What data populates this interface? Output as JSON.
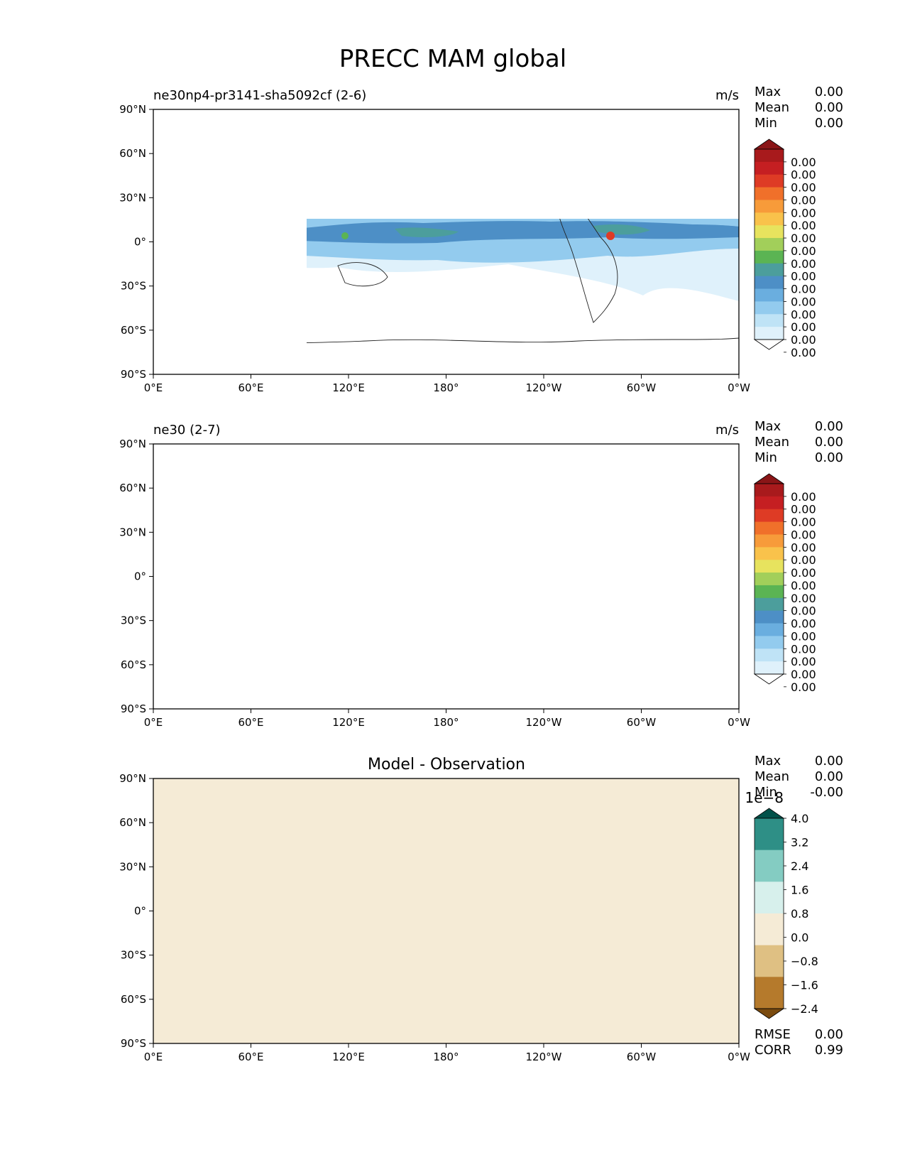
{
  "figure": {
    "title": "PRECC MAM global"
  },
  "chart_data": [
    {
      "type": "heatmap",
      "panel": "test",
      "title_left": "ne30np4-pr3141-sha5092cf (2-6)",
      "units": "m/s",
      "stats": {
        "max_label": "Max",
        "max": "0.00",
        "mean_label": "Mean",
        "mean": "0.00",
        "min_label": "Min",
        "min": "0.00"
      },
      "colorbar": {
        "colors": [
          "#ffffff",
          "#dff1fb",
          "#bfe3f6",
          "#93cbee",
          "#6aaedf",
          "#4d8fc6",
          "#4c9e9c",
          "#5bb453",
          "#a2cf5a",
          "#e7e35e",
          "#f9c24b",
          "#f79b3a",
          "#f0702a",
          "#de3b25",
          "#c51f22",
          "#a81a1c",
          "#8a1517"
        ],
        "labels": [
          "0.00",
          "0.00",
          "0.00",
          "0.00",
          "0.00",
          "0.00",
          "0.00",
          "0.00",
          "0.00",
          "0.00",
          "0.00",
          "0.00",
          "0.00",
          "0.00",
          "0.00",
          "0.00"
        ]
      },
      "xaxis": {
        "ticks": [
          "0°E",
          "60°E",
          "120°E",
          "180°",
          "120°W",
          "60°W",
          "0°W"
        ],
        "range": [
          0,
          360
        ]
      },
      "yaxis": {
        "ticks": [
          "90°N",
          "60°N",
          "30°N",
          "0°",
          "30°S",
          "60°S",
          "90°S"
        ],
        "range": [
          90,
          -90
        ]
      }
    },
    {
      "type": "heatmap",
      "panel": "reference",
      "title_left": "ne30 (2-7)",
      "units": "m/s",
      "stats": {
        "max_label": "Max",
        "max": "0.00",
        "mean_label": "Mean",
        "mean": "0.00",
        "min_label": "Min",
        "min": "0.00"
      },
      "colorbar": {
        "colors": [
          "#ffffff",
          "#dff1fb",
          "#bfe3f6",
          "#93cbee",
          "#6aaedf",
          "#4d8fc6",
          "#4c9e9c",
          "#5bb453",
          "#a2cf5a",
          "#e7e35e",
          "#f9c24b",
          "#f79b3a",
          "#f0702a",
          "#de3b25",
          "#c51f22",
          "#a81a1c",
          "#8a1517"
        ],
        "labels": [
          "0.00",
          "0.00",
          "0.00",
          "0.00",
          "0.00",
          "0.00",
          "0.00",
          "0.00",
          "0.00",
          "0.00",
          "0.00",
          "0.00",
          "0.00",
          "0.00",
          "0.00",
          "0.00"
        ]
      },
      "xaxis": {
        "ticks": [
          "0°E",
          "60°E",
          "120°E",
          "180°",
          "120°W",
          "60°W",
          "0°W"
        ],
        "range": [
          0,
          360
        ]
      },
      "yaxis": {
        "ticks": [
          "90°N",
          "60°N",
          "30°N",
          "0°",
          "30°S",
          "60°S",
          "90°S"
        ],
        "range": [
          90,
          -90
        ]
      }
    },
    {
      "type": "heatmap",
      "panel": "difference",
      "title_center": "Model - Observation",
      "stats": {
        "max_label": "Max",
        "max": "0.00",
        "mean_label": "Mean",
        "mean": "0.00",
        "min_label": "Min",
        "min": "-0.00"
      },
      "colorbar": {
        "scale": "1e−8",
        "colors": [
          "#7a4a0e",
          "#b57a2c",
          "#dfc083",
          "#f5ebd6",
          "#d7f0ec",
          "#84ccc2",
          "#2e8f86",
          "#01524a"
        ],
        "labels": [
          "4.0",
          "3.2",
          "2.4",
          "1.6",
          "0.8",
          "0.0",
          "−0.8",
          "−1.6",
          "−2.4"
        ]
      },
      "error_stats": {
        "rmse_label": "RMSE",
        "rmse": "0.00",
        "corr_label": "CORR",
        "corr": "0.99"
      },
      "xaxis": {
        "ticks": [
          "0°E",
          "60°E",
          "120°E",
          "180°",
          "120°W",
          "60°W",
          "0°W"
        ],
        "range": [
          0,
          360
        ]
      },
      "yaxis": {
        "ticks": [
          "90°N",
          "60°N",
          "30°N",
          "0°",
          "30°S",
          "60°S",
          "90°S"
        ],
        "range": [
          90,
          -90
        ]
      }
    }
  ]
}
